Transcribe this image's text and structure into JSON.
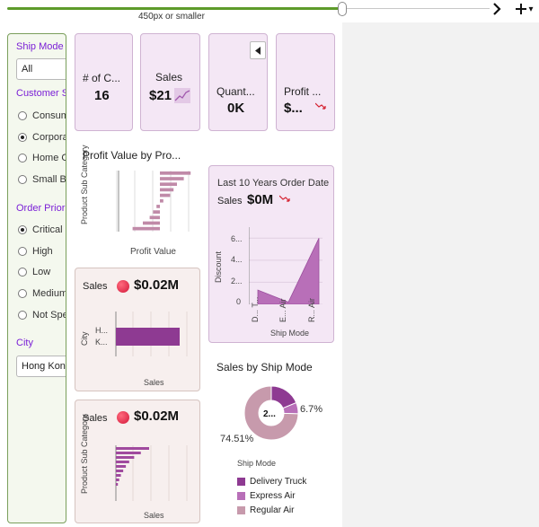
{
  "toolbar": {
    "slider_label": "450px or smaller",
    "next_icon": "chevron-right",
    "add_icon": "plus",
    "add_caret": "▾"
  },
  "filters": {
    "ship_mode": {
      "label": "Ship Mode",
      "value": "All"
    },
    "customer_segment": {
      "label": "Customer Segment",
      "options": [
        {
          "label": "Consumer",
          "selected": false
        },
        {
          "label": "Corporate",
          "selected": true
        },
        {
          "label": "Home Office",
          "selected": false
        },
        {
          "label": "Small Business",
          "selected": false
        }
      ]
    },
    "order_priority": {
      "label": "Order Priority",
      "options": [
        {
          "label": "Critical",
          "selected": true
        },
        {
          "label": "High",
          "selected": false
        },
        {
          "label": "Low",
          "selected": false
        },
        {
          "label": "Medium",
          "selected": false
        },
        {
          "label": "Not Specified",
          "selected": false
        }
      ]
    },
    "city": {
      "label": "City",
      "value": "Hong Kong"
    }
  },
  "kpis": {
    "customers": {
      "title": "# of C...",
      "value": "16"
    },
    "sales": {
      "title": "Sales",
      "value": "$21"
    },
    "quantity": {
      "title": "Quant...",
      "value": "0K"
    },
    "profit": {
      "title": "Profit ...",
      "value": "$..."
    }
  },
  "profit_chart": {
    "title": "Profit Value by Pro...",
    "ylabel": "Product Sub Category",
    "xlabel": "Profit Value"
  },
  "sales_city": {
    "label": "Sales",
    "value": "$0.02M",
    "ylabel": "City",
    "ticks": [
      "H...",
      "K..."
    ],
    "xlabel": "Sales"
  },
  "sales_subcat": {
    "label": "Sales",
    "value": "$0.02M",
    "ylabel": "Product Sub Category",
    "xlabel": "Sales"
  },
  "discount_chart": {
    "title": "Last 10 Years Order Date",
    "kpi_label": "Sales",
    "kpi_value": "$0M",
    "ylabel": "Discount",
    "yticks": [
      "6...",
      "4...",
      "2...",
      "0"
    ],
    "xticks": [
      "D... T...",
      "E... Air",
      "R... Air"
    ],
    "xlabel": "Ship Mode"
  },
  "donut": {
    "title": "Sales by Ship Mode",
    "center": "2...",
    "pct_small": "6.7%",
    "pct_large": "74.51%",
    "legend_title": "Ship Mode",
    "legend": [
      {
        "label": "Delivery Truck",
        "color": "#8e3a92"
      },
      {
        "label": "Express Air",
        "color": "#b86fb8"
      },
      {
        "label": "Regular Air",
        "color": "#c79aac"
      }
    ]
  },
  "chart_data": [
    {
      "type": "bar",
      "title": "Profit Value by Pro...",
      "ylabel": "Product Sub Category",
      "xlabel": "Profit Value",
      "orientation": "horizontal",
      "values": [
        9,
        7,
        5,
        4,
        3,
        1,
        -1,
        -2,
        -3,
        -5,
        -8
      ]
    },
    {
      "type": "bar",
      "orientation": "horizontal",
      "categories": [
        "H...",
        "K..."
      ],
      "values": [
        1.0,
        1.0
      ],
      "xlabel": "Sales",
      "ylabel": "City"
    },
    {
      "type": "bar",
      "orientation": "horizontal",
      "xlabel": "Sales",
      "ylabel": "Product Sub Category",
      "values": [
        10,
        7.5,
        5.5,
        4,
        3,
        2.2,
        1.5,
        1,
        0.6
      ]
    },
    {
      "type": "area",
      "categories": [
        "D... T...",
        "E... Air",
        "R... Air"
      ],
      "values": [
        1.3,
        0.2,
        6.0
      ],
      "ylabel": "Discount",
      "xlabel": "Ship Mode",
      "ylim": [
        0,
        7
      ]
    },
    {
      "type": "pie",
      "title": "Sales by Ship Mode",
      "categories": [
        "Delivery Truck",
        "Express Air",
        "Regular Air"
      ],
      "values": [
        18.79,
        6.7,
        74.51
      ]
    }
  ]
}
